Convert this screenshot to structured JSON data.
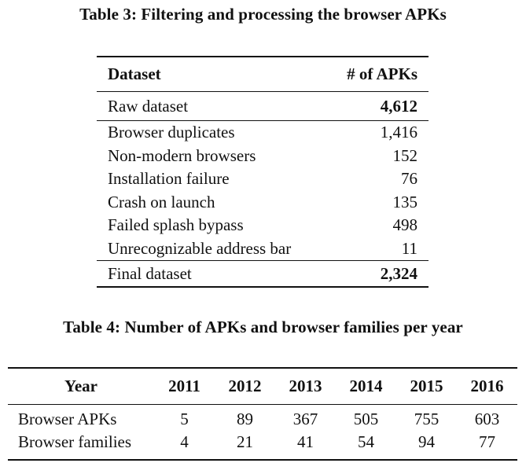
{
  "table3": {
    "caption": "Table 3: Filtering and processing the browser APKs",
    "header": {
      "dataset": "Dataset",
      "count": "# of APKs"
    },
    "raw": {
      "label": "Raw dataset",
      "value": "4,612"
    },
    "filters": [
      {
        "label": "Browser duplicates",
        "value": "1,416"
      },
      {
        "label": "Non-modern browsers",
        "value": "152"
      },
      {
        "label": "Installation failure",
        "value": "76"
      },
      {
        "label": "Crash on launch",
        "value": "135"
      },
      {
        "label": "Failed splash bypass",
        "value": "498"
      },
      {
        "label": "Unrecognizable address bar",
        "value": "11"
      }
    ],
    "final": {
      "label": "Final dataset",
      "value": "2,324"
    }
  },
  "table4": {
    "caption": "Table 4: Number of APKs and browser families per year",
    "header": {
      "label": "Year",
      "years": [
        "2011",
        "2012",
        "2013",
        "2014",
        "2015",
        "2016"
      ]
    },
    "rows": [
      {
        "label": "Browser APKs",
        "values": [
          "5",
          "89",
          "367",
          "505",
          "755",
          "603"
        ]
      },
      {
        "label": "Browser families",
        "values": [
          "4",
          "21",
          "41",
          "54",
          "94",
          "77"
        ]
      }
    ]
  }
}
